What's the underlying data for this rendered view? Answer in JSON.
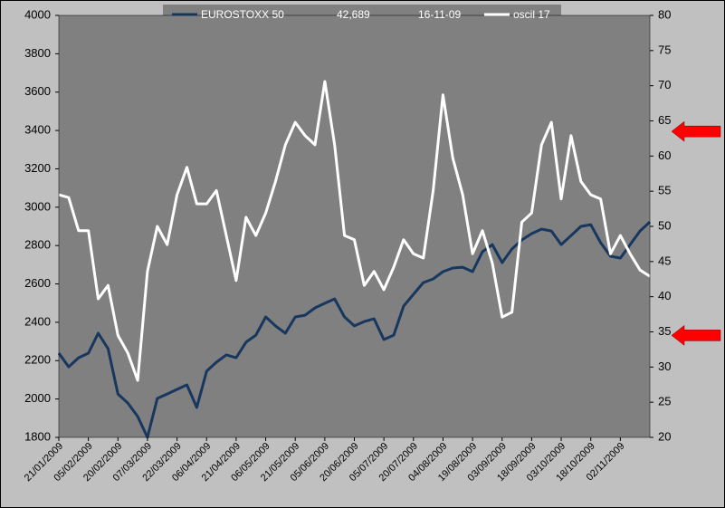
{
  "chart_data": {
    "type": "line",
    "categories": [
      "21/01/2009",
      null,
      null,
      "05/02/2009",
      null,
      null,
      "20/02/2009",
      null,
      null,
      "07/03/2009",
      null,
      null,
      "22/03/2009",
      null,
      null,
      "06/04/2009",
      null,
      null,
      "21/04/2009",
      null,
      null,
      "06/05/2009",
      null,
      null,
      "21/05/2009",
      null,
      null,
      "05/06/2009",
      null,
      null,
      "20/06/2009",
      null,
      null,
      "05/07/2009",
      null,
      null,
      "20/07/2009",
      null,
      null,
      "04/08/2009",
      null,
      null,
      "19/08/2009",
      null,
      null,
      "03/09/2009",
      null,
      null,
      "18/09/2009",
      null,
      null,
      "03/10/2009",
      null,
      null,
      "18/10/2009",
      null,
      null,
      "02/11/2009",
      null,
      null,
      null
    ],
    "series": [
      {
        "name": "EUROSTOXX 50",
        "color": "#17375e",
        "axis": "y",
        "values": [
          2239,
          2168,
          2215,
          2239,
          2343,
          2262,
          2026,
          1979,
          1909,
          1800,
          2003,
          2026,
          2050,
          2074,
          1956,
          2145,
          2192,
          2230,
          2215,
          2296,
          2333,
          2428,
          2381,
          2343,
          2428,
          2437,
          2475,
          2499,
          2522,
          2428,
          2381,
          2404,
          2418,
          2310,
          2333,
          2484,
          2546,
          2607,
          2626,
          2664,
          2683,
          2687,
          2664,
          2768,
          2805,
          2711,
          2782,
          2829,
          2862,
          2886,
          2876,
          2805,
          2852,
          2900,
          2909,
          2815,
          2744,
          2735,
          2805,
          2876,
          2923
        ]
      },
      {
        "name": "oscil 17",
        "color": "#ffffff",
        "axis": "y2",
        "values": [
          54.5,
          54.1,
          49.4,
          49.4,
          39.7,
          41.6,
          34.5,
          32.0,
          28.1,
          43.6,
          50.0,
          47.4,
          54.5,
          58.4,
          53.2,
          53.2,
          55.1,
          48.7,
          42.3,
          51.3,
          48.7,
          51.9,
          56.4,
          61.6,
          64.8,
          62.9,
          61.6,
          70.6,
          61.6,
          48.7,
          48.1,
          41.6,
          43.6,
          41.0,
          44.2,
          48.1,
          46.1,
          45.5,
          55.1,
          68.7,
          59.7,
          54.5,
          46.1,
          49.4,
          44.8,
          37.1,
          37.8,
          50.6,
          51.9,
          61.6,
          64.8,
          53.9,
          62.9,
          56.4,
          54.5,
          53.9,
          46.1,
          48.7,
          46.1,
          43.8,
          42.9
        ]
      }
    ],
    "legend_info": [
      "42,689",
      "16-11-09"
    ],
    "ylim": [
      1800,
      4000
    ],
    "yticks": [
      1800,
      2000,
      2200,
      2400,
      2600,
      2800,
      3000,
      3200,
      3400,
      3600,
      3800,
      4000
    ],
    "y2lim": [
      20,
      80
    ],
    "y2ticks": [
      20,
      25,
      30,
      35,
      40,
      45,
      50,
      55,
      60,
      65,
      70,
      75,
      80
    ],
    "y2_arrows": [
      63.5,
      34.5
    ],
    "arrow_color": "#ff0000",
    "plot_color": "#808080",
    "background": "#c0c0c0"
  }
}
